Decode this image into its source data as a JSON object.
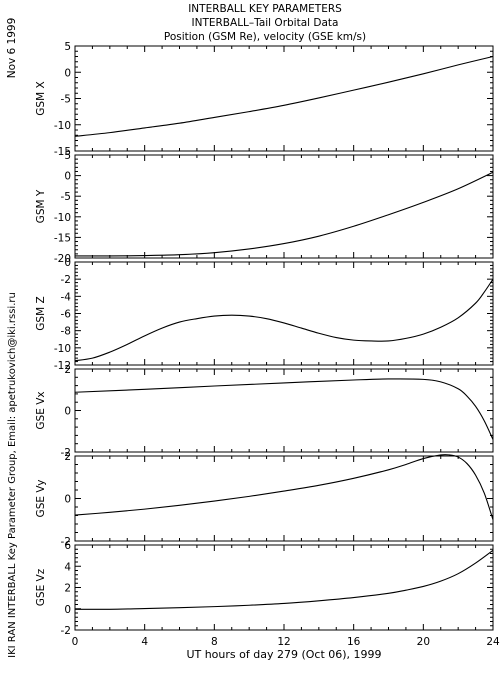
{
  "header": {
    "date": "Nov  6 1999",
    "lines": [
      "INTERBALL KEY PARAMETERS",
      "INTERBALL–Tail Orbital Data",
      "Position (GSM Re), velocity (GSE km/s)"
    ],
    "side_credit": "IKI RAN INTERBALL Key Parameter Group, Email: apetrukovich@iki.rssi.ru"
  },
  "xaxis": {
    "label": "UT hours of day 279 (Oct 06), 1999",
    "ticks": [
      "0",
      "4",
      "8",
      "12",
      "16",
      "20",
      "24"
    ],
    "range": [
      0,
      24
    ]
  },
  "chart_data": [
    {
      "type": "line",
      "ylabel": "GSM X",
      "xlim": [
        0,
        24
      ],
      "ylim": [
        -15,
        5
      ],
      "yticks": [
        5,
        0,
        -5,
        -10,
        -15
      ],
      "series": [
        {
          "x": [
            0,
            2,
            4,
            6,
            8,
            10,
            12,
            14,
            16,
            18,
            20,
            22,
            24
          ],
          "y": [
            -12.2,
            -11.5,
            -10.6,
            -9.7,
            -8.6,
            -7.5,
            -6.3,
            -4.9,
            -3.4,
            -1.9,
            -0.3,
            1.4,
            3.0
          ]
        }
      ]
    },
    {
      "type": "line",
      "ylabel": "GSM Y",
      "xlim": [
        0,
        24
      ],
      "ylim": [
        -20,
        5
      ],
      "yticks": [
        5,
        0,
        -5,
        -10,
        -15,
        -20
      ],
      "series": [
        {
          "x": [
            0,
            2,
            4,
            6,
            8,
            10,
            12,
            14,
            16,
            18,
            20,
            22,
            24
          ],
          "y": [
            -19.5,
            -19.5,
            -19.4,
            -19.2,
            -18.7,
            -17.8,
            -16.5,
            -14.7,
            -12.3,
            -9.5,
            -6.5,
            -3.2,
            0.8
          ]
        }
      ]
    },
    {
      "type": "line",
      "ylabel": "GSM Z",
      "xlim": [
        0,
        24
      ],
      "ylim": [
        -12,
        0
      ],
      "yticks": [
        0,
        -2,
        -4,
        -6,
        -8,
        -10,
        -12
      ],
      "series": [
        {
          "x": [
            0,
            1,
            2,
            3,
            4,
            5,
            6,
            7,
            8,
            9,
            10,
            11,
            12,
            13,
            14,
            15,
            16,
            17,
            18,
            19,
            20,
            21,
            22,
            23,
            23.5,
            24
          ],
          "y": [
            -11.5,
            -11.2,
            -10.5,
            -9.6,
            -8.6,
            -7.7,
            -7.0,
            -6.6,
            -6.3,
            -6.2,
            -6.3,
            -6.6,
            -7.1,
            -7.7,
            -8.3,
            -8.8,
            -9.1,
            -9.2,
            -9.2,
            -8.9,
            -8.4,
            -7.6,
            -6.5,
            -4.8,
            -3.5,
            -2.0
          ]
        }
      ]
    },
    {
      "type": "line",
      "ylabel": "GSE Vx",
      "xlim": [
        0,
        24
      ],
      "ylim": [
        -2,
        2
      ],
      "yticks": [
        2,
        0,
        -2
      ],
      "series": [
        {
          "x": [
            0,
            4,
            8,
            12,
            16,
            18,
            20,
            21,
            22,
            22.5,
            23,
            23.5,
            24
          ],
          "y": [
            0.88,
            1.02,
            1.18,
            1.33,
            1.47,
            1.52,
            1.5,
            1.38,
            1.05,
            0.7,
            0.2,
            -0.5,
            -1.4
          ]
        }
      ]
    },
    {
      "type": "line",
      "ylabel": "GSE Vy",
      "xlim": [
        0,
        24
      ],
      "ylim": [
        -2,
        2
      ],
      "yticks": [
        2,
        0,
        -2
      ],
      "series": [
        {
          "x": [
            0,
            2,
            4,
            6,
            8,
            10,
            12,
            14,
            16,
            18,
            19,
            20,
            21,
            21.5,
            22,
            22.5,
            23,
            23.5,
            24
          ],
          "y": [
            -0.78,
            -0.65,
            -0.5,
            -0.32,
            -0.12,
            0.1,
            0.35,
            0.62,
            0.95,
            1.35,
            1.6,
            1.88,
            2.05,
            2.05,
            1.95,
            1.65,
            1.1,
            0.25,
            -1.0
          ]
        }
      ]
    },
    {
      "type": "line",
      "ylabel": "GSE Vz",
      "xlim": [
        0,
        24
      ],
      "ylim": [
        -2,
        6
      ],
      "yticks": [
        6,
        4,
        2,
        0,
        -2
      ],
      "series": [
        {
          "x": [
            0,
            2,
            4,
            6,
            8,
            10,
            12,
            14,
            16,
            18,
            19,
            20,
            21,
            22,
            23,
            24
          ],
          "y": [
            -0.05,
            -0.05,
            0.02,
            0.1,
            0.2,
            0.33,
            0.5,
            0.75,
            1.05,
            1.45,
            1.75,
            2.1,
            2.6,
            3.3,
            4.3,
            5.5
          ]
        }
      ]
    }
  ]
}
